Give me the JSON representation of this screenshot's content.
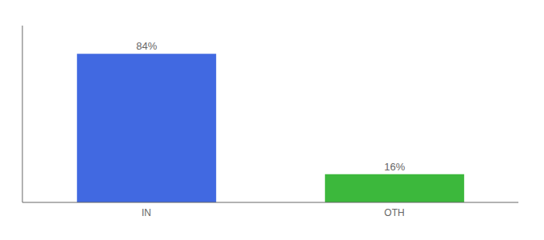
{
  "chart_data": {
    "type": "bar",
    "categories": [
      "IN",
      "OTH"
    ],
    "values": [
      84,
      16
    ],
    "value_labels": [
      "84%",
      "16%"
    ],
    "colors": [
      "#4169e1",
      "#3cb83c"
    ],
    "ylim": [
      0,
      100
    ],
    "data_labels": true,
    "tick_labels": "x",
    "grid": false
  }
}
